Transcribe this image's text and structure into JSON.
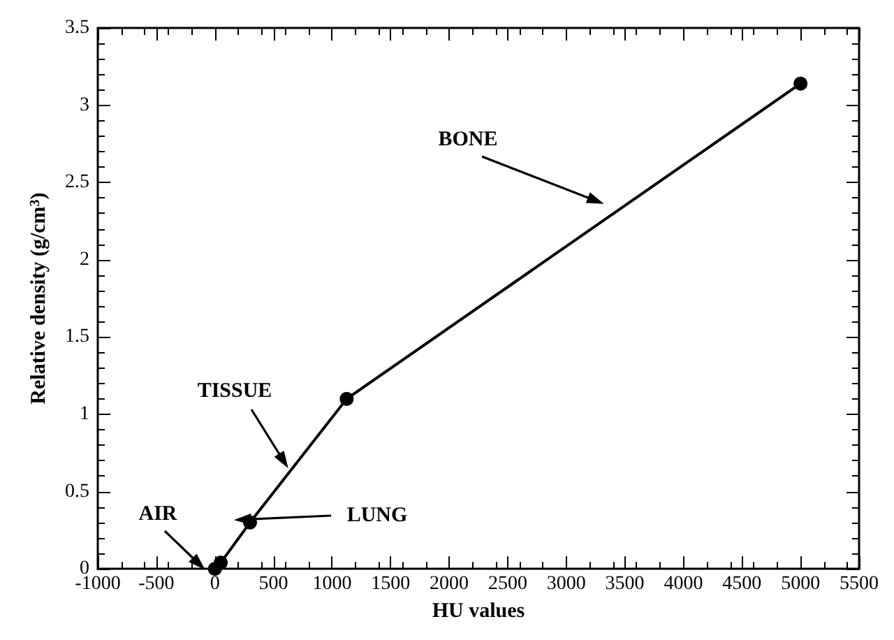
{
  "chart_data": {
    "type": "line",
    "xlabel": "HU values",
    "ylabel": "Relative density (g/cm$^{3}$)",
    "x": [
      0,
      50,
      300,
      1125,
      5000
    ],
    "series": [
      {
        "color": "#000000",
        "values": [
          0,
          0.04,
          0.3,
          1.1,
          3.14
        ]
      }
    ],
    "xlim": [
      -1000,
      5500
    ],
    "xticks": [
      -1000,
      -500,
      0,
      500,
      1000,
      1500,
      2000,
      2500,
      3000,
      3500,
      4000,
      4500,
      5000,
      5500
    ],
    "ylim": [
      0,
      3.5
    ],
    "yticks": [
      0,
      0.5,
      1,
      1.5,
      2,
      2.5,
      3,
      3.5
    ],
    "grid": false,
    "marker": "circle",
    "line_style": "solid",
    "annotations": [
      "BONE",
      "TISSUE",
      "AIR",
      "LUNG"
    ]
  }
}
